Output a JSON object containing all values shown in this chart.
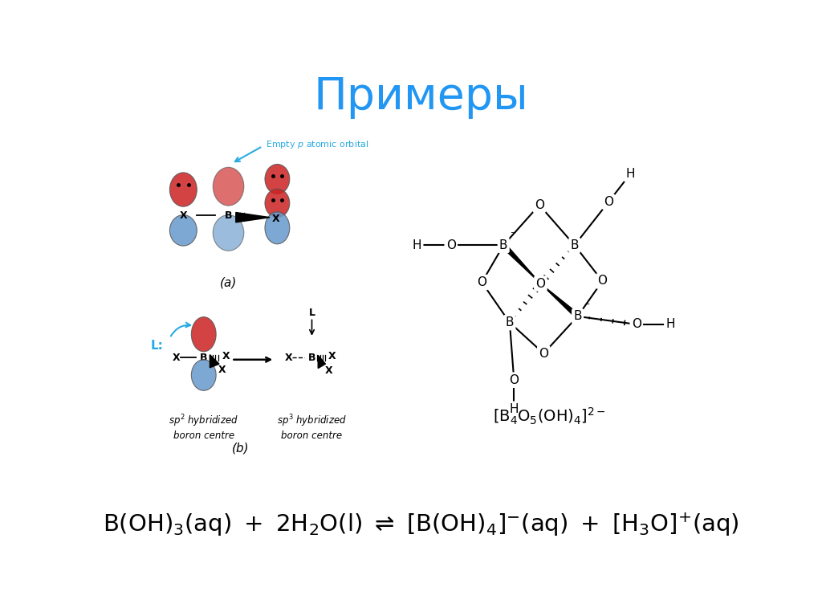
{
  "title": "Примеры",
  "title_color": "#2196F3",
  "title_fontsize": 40,
  "bg_color": "#ffffff",
  "label_a": "(a)",
  "label_b": "(b)",
  "empty_p_label": "Empty $p$ atomic orbital",
  "sp2_label": "$sp^2$ hybridized\nboron centre",
  "sp3_label": "$sp^3$ hybridized\nboron centre",
  "boron_formula": "[B$_4$O$_5$(OH)$_4$]$^{2-}$",
  "red_c": "#CC2222",
  "blue_c": "#6699CC",
  "arrow_blue": "#29ABE2"
}
